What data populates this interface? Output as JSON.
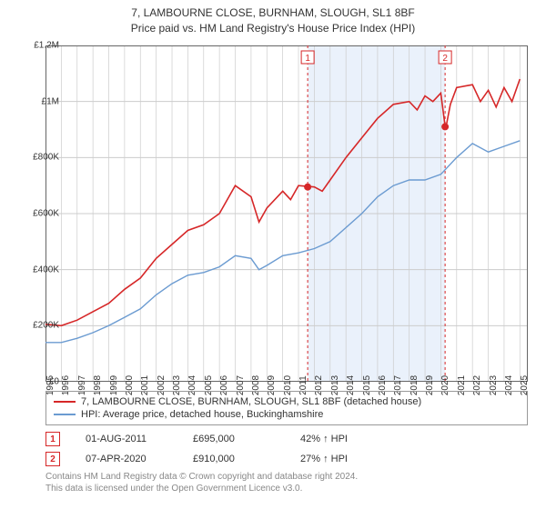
{
  "title_line1": "7, LAMBOURNE CLOSE, BURNHAM, SLOUGH, SL1 8BF",
  "title_line2": "Price paid vs. HM Land Registry's House Price Index (HPI)",
  "chart": {
    "type": "line",
    "background_color": "#ffffff",
    "grid_color": "#cccccc",
    "border_color": "#666666",
    "shaded_band_color": "#eaf1fb",
    "shaded_band_xrange": [
      2011.6,
      2020.27
    ],
    "xlim": [
      1995,
      2025.5
    ],
    "ylim": [
      0,
      1200000
    ],
    "ytick_step": 200000,
    "ytick_labels": [
      "£0",
      "£200K",
      "£400K",
      "£600K",
      "£800K",
      "£1M",
      "£1.2M"
    ],
    "xticks": [
      1995,
      1996,
      1997,
      1998,
      1999,
      2000,
      2001,
      2002,
      2003,
      2004,
      2005,
      2006,
      2007,
      2008,
      2009,
      2010,
      2011,
      2012,
      2013,
      2014,
      2015,
      2016,
      2017,
      2018,
      2019,
      2020,
      2021,
      2022,
      2023,
      2024,
      2025
    ],
    "label_fontsize": 10,
    "series": [
      {
        "name": "price_paid",
        "color": "#d62728",
        "line_width": 1.6,
        "points": [
          [
            1995,
            205000
          ],
          [
            1996,
            200000
          ],
          [
            1997,
            220000
          ],
          [
            1998,
            250000
          ],
          [
            1999,
            280000
          ],
          [
            2000,
            330000
          ],
          [
            2001,
            370000
          ],
          [
            2002,
            440000
          ],
          [
            2003,
            490000
          ],
          [
            2004,
            540000
          ],
          [
            2005,
            560000
          ],
          [
            2006,
            600000
          ],
          [
            2007,
            700000
          ],
          [
            2008,
            660000
          ],
          [
            2008.5,
            570000
          ],
          [
            2009,
            620000
          ],
          [
            2010,
            680000
          ],
          [
            2010.5,
            650000
          ],
          [
            2011,
            700000
          ],
          [
            2012,
            695000
          ],
          [
            2012.5,
            680000
          ],
          [
            2013,
            720000
          ],
          [
            2014,
            800000
          ],
          [
            2015,
            870000
          ],
          [
            2016,
            940000
          ],
          [
            2017,
            990000
          ],
          [
            2018,
            1000000
          ],
          [
            2018.5,
            970000
          ],
          [
            2019,
            1020000
          ],
          [
            2019.5,
            1000000
          ],
          [
            2020,
            1030000
          ],
          [
            2020.3,
            900000
          ],
          [
            2020.6,
            990000
          ],
          [
            2021,
            1050000
          ],
          [
            2022,
            1060000
          ],
          [
            2022.5,
            1000000
          ],
          [
            2023,
            1040000
          ],
          [
            2023.5,
            980000
          ],
          [
            2024,
            1050000
          ],
          [
            2024.5,
            1000000
          ],
          [
            2025,
            1080000
          ]
        ]
      },
      {
        "name": "hpi",
        "color": "#6b9bd1",
        "line_width": 1.4,
        "points": [
          [
            1995,
            140000
          ],
          [
            1996,
            140000
          ],
          [
            1997,
            155000
          ],
          [
            1998,
            175000
          ],
          [
            1999,
            200000
          ],
          [
            2000,
            230000
          ],
          [
            2001,
            260000
          ],
          [
            2002,
            310000
          ],
          [
            2003,
            350000
          ],
          [
            2004,
            380000
          ],
          [
            2005,
            390000
          ],
          [
            2006,
            410000
          ],
          [
            2007,
            450000
          ],
          [
            2008,
            440000
          ],
          [
            2008.5,
            400000
          ],
          [
            2009,
            415000
          ],
          [
            2010,
            450000
          ],
          [
            2011,
            460000
          ],
          [
            2012,
            475000
          ],
          [
            2013,
            500000
          ],
          [
            2014,
            550000
          ],
          [
            2015,
            600000
          ],
          [
            2016,
            660000
          ],
          [
            2017,
            700000
          ],
          [
            2018,
            720000
          ],
          [
            2019,
            720000
          ],
          [
            2020,
            740000
          ],
          [
            2021,
            800000
          ],
          [
            2022,
            850000
          ],
          [
            2023,
            820000
          ],
          [
            2024,
            840000
          ],
          [
            2025,
            860000
          ]
        ]
      }
    ],
    "sale_markers": [
      {
        "id": "1",
        "x": 2011.58,
        "y": 695000,
        "line_color": "#d62728",
        "dot_color": "#d62728"
      },
      {
        "id": "2",
        "x": 2020.27,
        "y": 910000,
        "line_color": "#d62728",
        "dot_color": "#d62728"
      }
    ],
    "marker_label_box_border": "#d62728",
    "marker_label_box_fill": "#ffffff"
  },
  "legend": {
    "items": [
      {
        "color": "#d62728",
        "label": "7, LAMBOURNE CLOSE, BURNHAM, SLOUGH, SL1 8BF (detached house)"
      },
      {
        "color": "#6b9bd1",
        "label": "HPI: Average price, detached house, Buckinghamshire"
      }
    ]
  },
  "sale_table": {
    "rows": [
      {
        "badge": "1",
        "date": "01-AUG-2011",
        "price": "£695,000",
        "delta": "42% ↑ HPI"
      },
      {
        "badge": "2",
        "date": "07-APR-2020",
        "price": "£910,000",
        "delta": "27% ↑ HPI"
      }
    ],
    "badge_border": "#d62728",
    "badge_text_color": "#d62728"
  },
  "footer_line1": "Contains HM Land Registry data © Crown copyright and database right 2024.",
  "footer_line2": "This data is licensed under the Open Government Licence v3.0."
}
